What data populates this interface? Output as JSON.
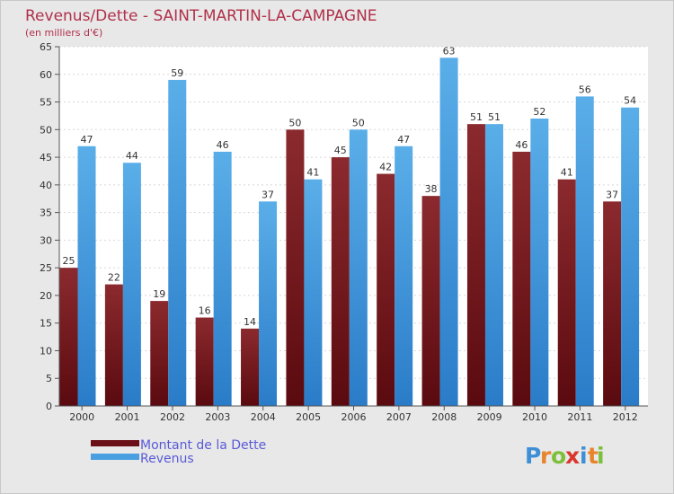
{
  "chart_data": {
    "type": "bar",
    "title": "Revenus/Dette - SAINT-MARTIN-LA-CAMPAGNE",
    "subtitle": "(en milliers d'€)",
    "categories": [
      "2000",
      "2001",
      "2002",
      "2003",
      "2004",
      "2005",
      "2006",
      "2007",
      "2008",
      "2009",
      "2010",
      "2011",
      "2012"
    ],
    "series": [
      {
        "name": "Montant de la Dette",
        "color": "#7a1a1f",
        "values": [
          25,
          22,
          19,
          16,
          14,
          50,
          45,
          42,
          38,
          51,
          46,
          41,
          37
        ]
      },
      {
        "name": "Revenus",
        "color": "#4a9fe0",
        "values": [
          47,
          44,
          59,
          46,
          37,
          41,
          50,
          47,
          63,
          51,
          52,
          56,
          54
        ]
      }
    ],
    "ylim": [
      0,
      65
    ],
    "yticks": [
      0,
      5,
      10,
      15,
      20,
      25,
      30,
      35,
      40,
      45,
      50,
      55,
      60,
      65
    ],
    "grid": true,
    "legend": "bottom-left"
  },
  "logo": {
    "letters": [
      "P",
      "r",
      "o",
      "x",
      "i",
      "t",
      "i"
    ],
    "colors": [
      "#3d8fd6",
      "#e8842a",
      "#7cbf3a",
      "#d9372b",
      "#3d8fd6",
      "#e8842a",
      "#7cbf3a"
    ]
  }
}
